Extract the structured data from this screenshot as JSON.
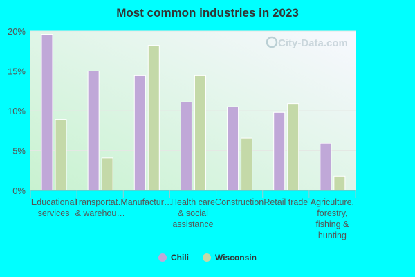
{
  "chart_data": {
    "type": "bar",
    "title": "Most common industries in 2023",
    "categories": [
      [
        "Educational",
        "services"
      ],
      [
        "Transportat…",
        "& warehou…"
      ],
      [
        "Manufactur…"
      ],
      [
        "Health care",
        "& social",
        "assistance"
      ],
      [
        "Construction"
      ],
      [
        "Retail trade"
      ],
      [
        "Agriculture,",
        "forestry,",
        "fishing &",
        "hunting"
      ]
    ],
    "series": [
      {
        "name": "Chili",
        "color": "#c0a8d8",
        "values": [
          19.6,
          15.0,
          14.4,
          11.1,
          10.5,
          9.8,
          5.9
        ]
      },
      {
        "name": "Wisconsin",
        "color": "#c4d9a8",
        "values": [
          8.9,
          4.1,
          18.2,
          14.4,
          6.6,
          10.9,
          1.8
        ]
      }
    ],
    "ylim": [
      0,
      20
    ],
    "yticks": [
      "0%",
      "5%",
      "10%",
      "15%",
      "20%"
    ],
    "grid": true,
    "legend": "bottom",
    "watermark": "City-Data.com"
  }
}
